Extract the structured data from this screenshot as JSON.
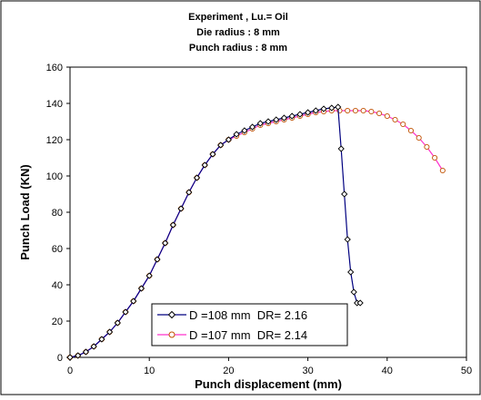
{
  "chart_data": {
    "type": "line",
    "title_lines": [
      "Experiment , Lu.= Oil",
      "Die radius : 8 mm",
      "Punch radius : 8 mm"
    ],
    "xlabel": "Punch displacement (mm)",
    "ylabel": "Punch Load (KN)",
    "xlim": [
      0,
      50
    ],
    "ylim": [
      0,
      160
    ],
    "xticks": [
      0,
      10,
      20,
      30,
      40,
      50
    ],
    "yticks": [
      0,
      20,
      40,
      60,
      80,
      100,
      120,
      140,
      160
    ],
    "grid": false,
    "legend_position": "bottom-center",
    "series": [
      {
        "name": "D =108 mm  DR= 2.16",
        "color": "#000080",
        "marker": "diamond",
        "x": [
          0,
          1,
          2,
          3,
          4,
          5,
          6,
          7,
          8,
          9,
          10,
          11,
          12,
          13,
          14,
          15,
          16,
          17,
          18,
          19,
          20,
          21,
          22,
          23,
          24,
          25,
          26,
          27,
          28,
          29,
          30,
          31,
          32,
          33,
          33.8,
          34.2,
          34.6,
          35,
          35.4,
          35.8,
          36.2,
          36.6
        ],
        "y": [
          0,
          1,
          3,
          6,
          10,
          14,
          19,
          25,
          31,
          38,
          45,
          54,
          63,
          73,
          82,
          91,
          99,
          106,
          112,
          117,
          120,
          123,
          125,
          127,
          129,
          130,
          131,
          132,
          133,
          134,
          135,
          136,
          137,
          137.5,
          138,
          115,
          90,
          65,
          47,
          36,
          30,
          30
        ]
      },
      {
        "name": "D =107 mm  DR= 2.14",
        "color": "#C00000",
        "marker": "circle",
        "x": [
          0,
          1,
          2,
          3,
          4,
          5,
          6,
          7,
          8,
          9,
          10,
          11,
          12,
          13,
          14,
          15,
          16,
          17,
          18,
          19,
          20,
          21,
          22,
          23,
          24,
          25,
          26,
          27,
          28,
          29,
          30,
          31,
          32,
          33,
          34,
          35,
          36,
          37,
          38,
          39,
          40,
          41,
          42,
          43,
          44,
          45,
          46,
          47
        ],
        "y": [
          0,
          1,
          3,
          6,
          10,
          14,
          19,
          25,
          31,
          38,
          45,
          54,
          63,
          73,
          82,
          91,
          99,
          106,
          112,
          117,
          120,
          122,
          124,
          126,
          128,
          129,
          130,
          131,
          132,
          133,
          134,
          135,
          135.5,
          136,
          136,
          136,
          136,
          136,
          135.5,
          134.5,
          133,
          131,
          128.5,
          125,
          121,
          116,
          110,
          103
        ]
      }
    ]
  }
}
